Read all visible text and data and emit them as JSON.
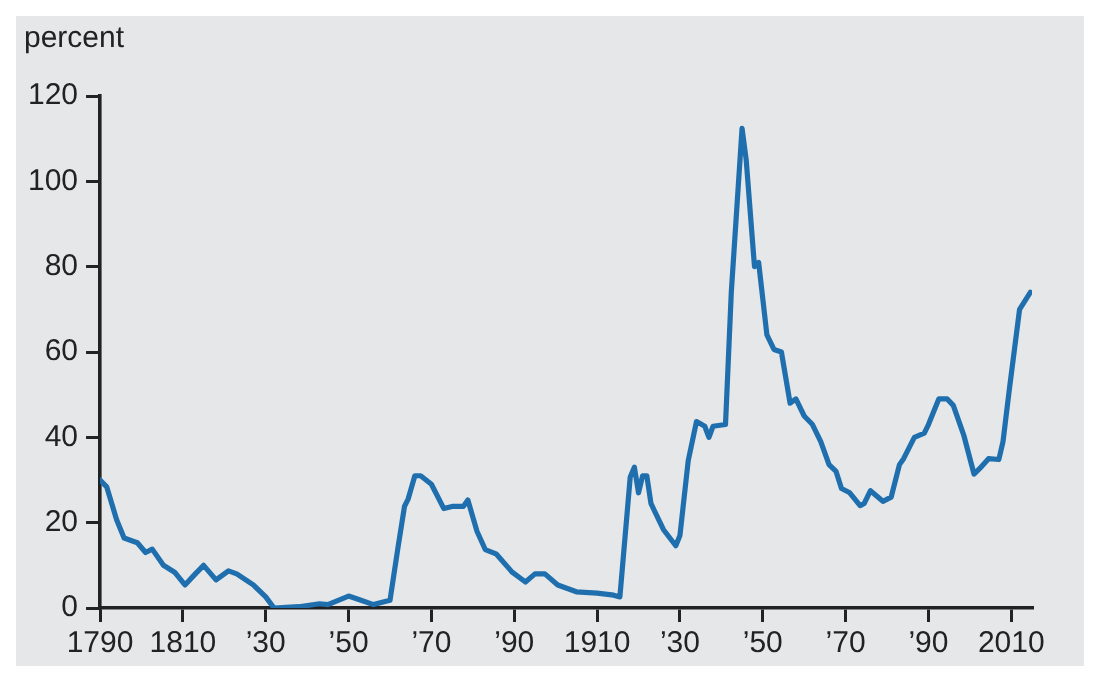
{
  "chart_data": {
    "type": "line",
    "ylabel": "percent",
    "x": [
      1790,
      1791.6,
      1794,
      1795.8,
      1799,
      1801,
      1802.6,
      1805.3,
      1808,
      1810.5,
      1813,
      1815,
      1818,
      1821,
      1823,
      1827,
      1830,
      1832,
      1838,
      1843,
      1845,
      1850,
      1853,
      1856,
      1860,
      1862,
      1863.5,
      1864.4,
      1866,
      1867.4,
      1870,
      1873,
      1875,
      1877.7,
      1878.8,
      1881,
      1883,
      1885.6,
      1889.5,
      1892.7,
      1895,
      1897.4,
      1900.5,
      1905,
      1910,
      1914,
      1915.5,
      1918,
      1919,
      1920,
      1921,
      1922,
      1923,
      1926,
      1929,
      1930,
      1932,
      1934,
      1936,
      1937,
      1938,
      1941,
      1942.4,
      1945,
      1946,
      1948,
      1949,
      1951,
      1952.7,
      1954.5,
      1956.6,
      1958,
      1960,
      1962,
      1964,
      1966,
      1967.7,
      1969,
      1971,
      1973.5,
      1974.5,
      1976,
      1979,
      1981,
      1983,
      1984,
      1986.6,
      1989,
      1990,
      1992.5,
      1994.5,
      1996,
      1998.5,
      2001,
      2002.4,
      2004.5,
      2007,
      2008,
      2009.5,
      2012,
      2014.6
    ],
    "series": [
      {
        "color": "#1f6fae",
        "values": [
          30,
          28.4,
          20.7,
          16.4,
          15.3,
          13,
          13.8,
          10,
          8.4,
          5.4,
          8,
          10,
          6.6,
          8.7,
          8,
          5.4,
          2.6,
          0,
          0.3,
          1,
          0.8,
          2.8,
          1.8,
          0.8,
          1.8,
          14.6,
          23.8,
          25.6,
          31,
          31,
          29,
          23.3,
          23.8,
          23.8,
          25.3,
          18,
          13.7,
          12.7,
          8.4,
          6.1,
          8,
          8,
          5.4,
          3.8,
          3.5,
          3,
          2.6,
          30.7,
          33,
          27,
          31,
          31,
          24.5,
          18.4,
          14.6,
          17,
          34.5,
          43.7,
          42.6,
          40,
          42.6,
          43,
          74,
          112.4,
          105,
          80,
          81,
          64,
          60.6,
          60,
          48,
          49,
          45,
          43,
          39,
          33.6,
          32,
          28,
          27,
          24,
          24.5,
          27.5,
          25,
          26,
          33.6,
          35,
          40,
          41,
          43,
          49,
          49,
          47.5,
          40.6,
          31.4,
          32.7,
          35,
          34.8,
          39,
          51,
          70,
          74
        ]
      }
    ],
    "xlim": [
      1790,
      2015
    ],
    "xticks": [
      {
        "value": 1790,
        "label": "1790"
      },
      {
        "value": 1810,
        "label": "1810"
      },
      {
        "value": 1830,
        "label": "’30"
      },
      {
        "value": 1850,
        "label": "’50"
      },
      {
        "value": 1870,
        "label": "’70"
      },
      {
        "value": 1890,
        "label": "’90"
      },
      {
        "value": 1910,
        "label": "1910"
      },
      {
        "value": 1930,
        "label": "’30"
      },
      {
        "value": 1950,
        "label": "’50"
      },
      {
        "value": 1970,
        "label": "’70"
      },
      {
        "value": 1990,
        "label": "’90"
      },
      {
        "value": 2010,
        "label": "2010"
      }
    ],
    "ylim": [
      0,
      120
    ],
    "yticks": [
      0,
      20,
      40,
      60,
      80,
      100,
      120
    ],
    "grid": false,
    "legend": false,
    "marker": "none",
    "line_style": "solid"
  }
}
